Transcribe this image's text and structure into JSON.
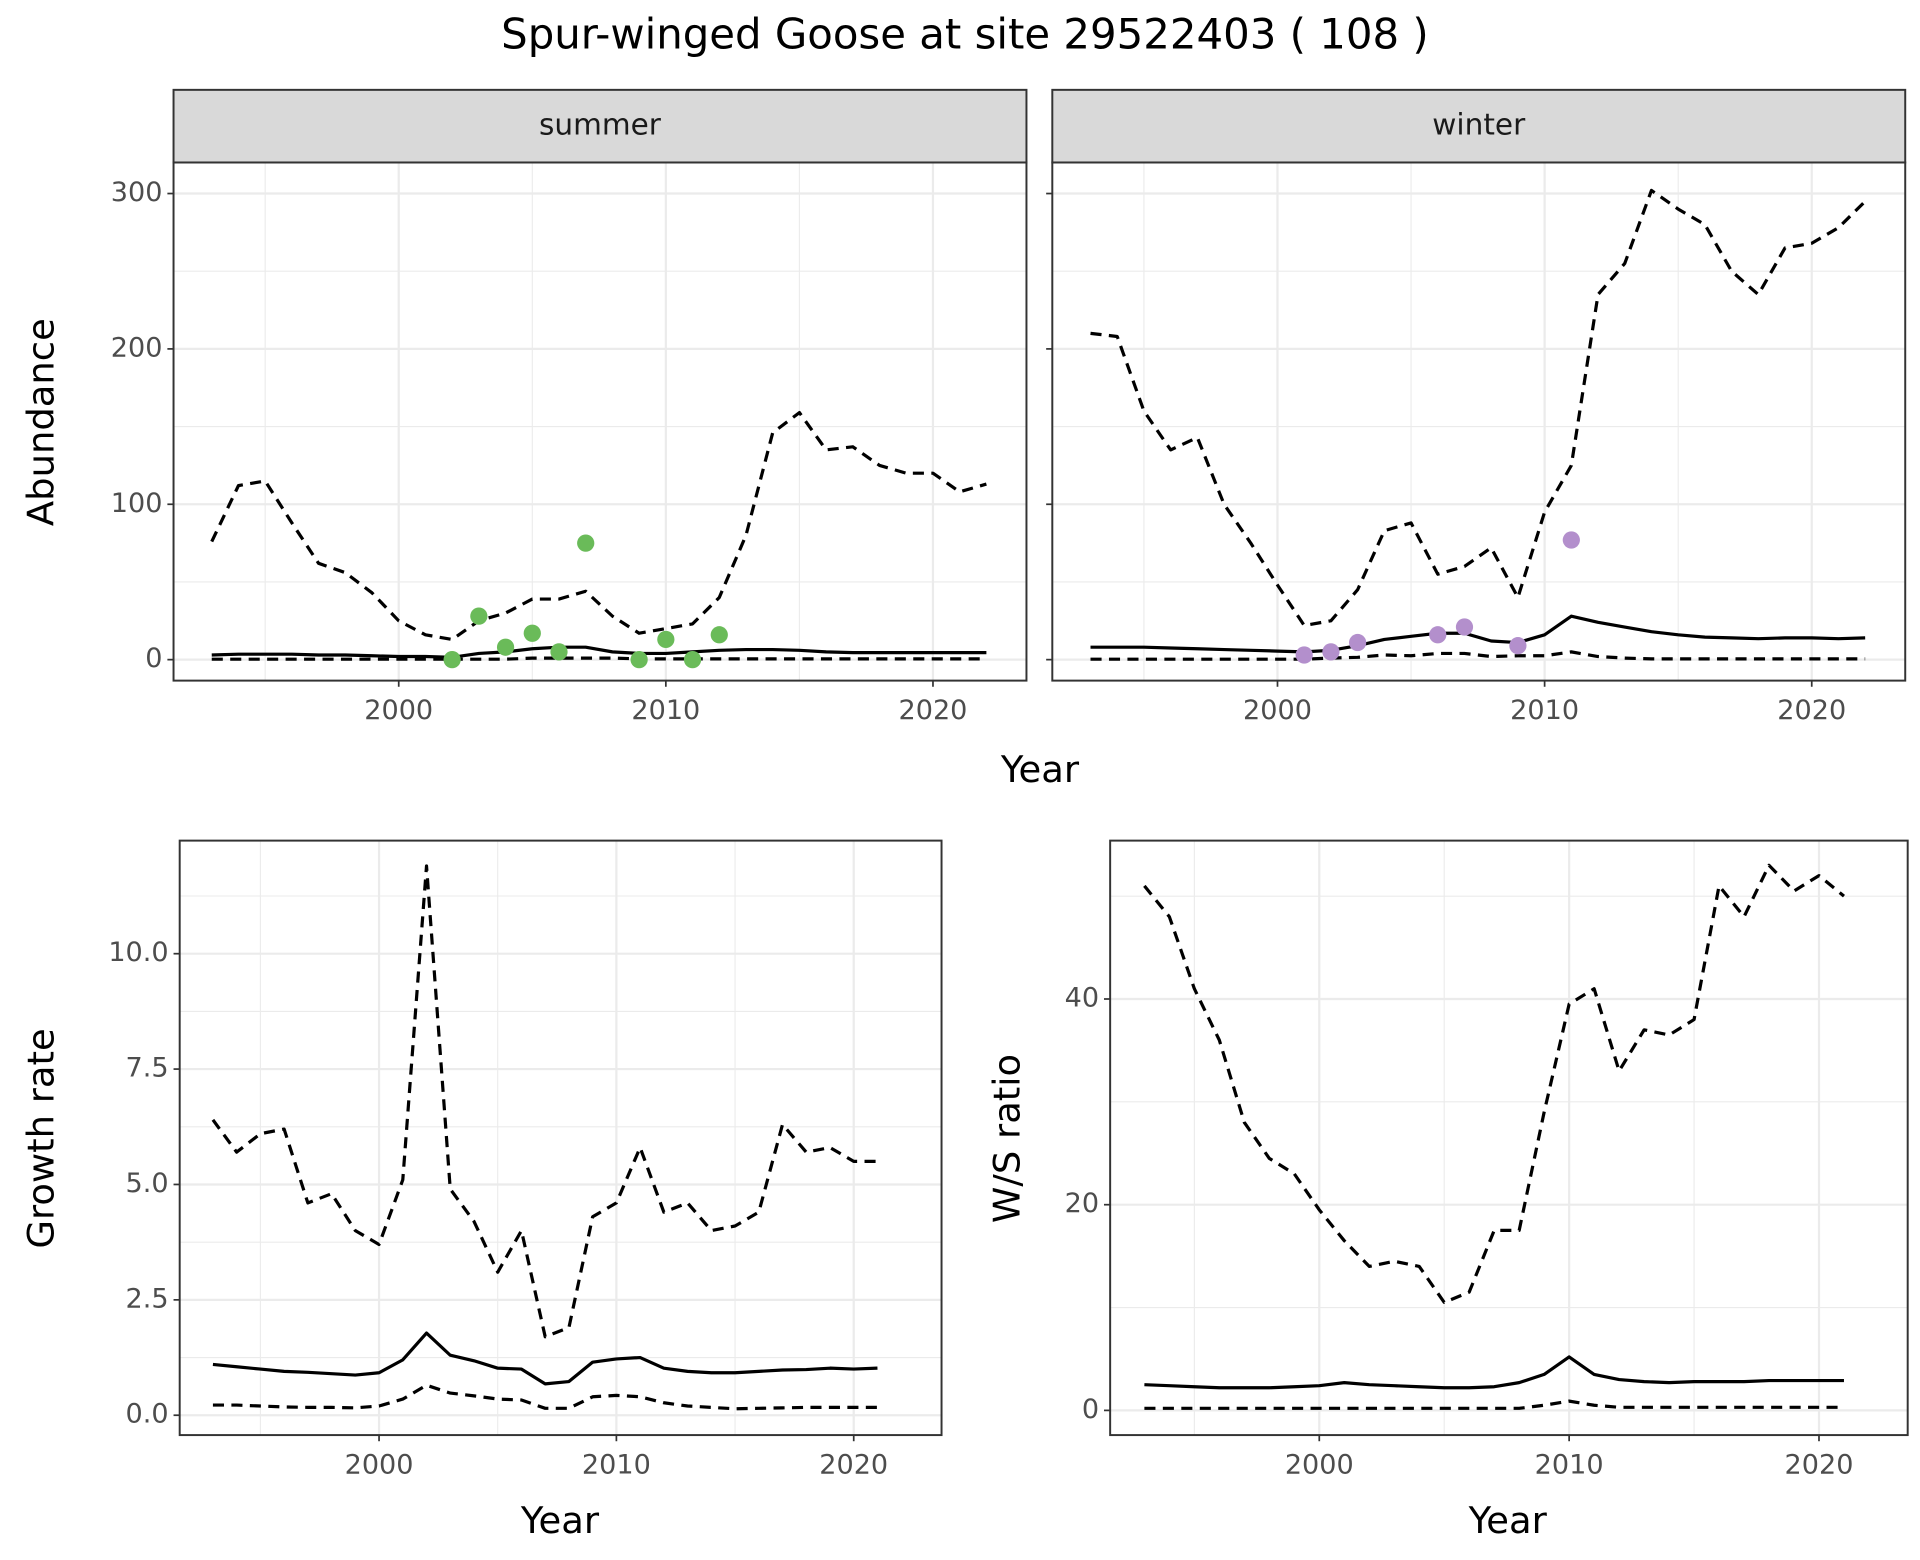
{
  "title": "Spur-winged Goose at site 29522403 ( 108 )",
  "chart_data": [
    {
      "type": "line",
      "title": "summer",
      "ylabel": "Abundance",
      "xlabel": "Year",
      "xlim": [
        1991.57,
        2023.5
      ],
      "ylim": [
        -13.5,
        320
      ],
      "xticks": [
        2000,
        2010,
        2020
      ],
      "yticks": [
        0,
        100,
        200,
        300
      ],
      "grid": true,
      "x": [
        1993,
        1994,
        1995,
        1996,
        1997,
        1998,
        1999,
        2000,
        2001,
        2002,
        2003,
        2004,
        2005,
        2006,
        2007,
        2008,
        2009,
        2010,
        2011,
        2012,
        2013,
        2014,
        2015,
        2016,
        2017,
        2018,
        2019,
        2020,
        2021,
        2022
      ],
      "series": [
        {
          "style": "solid",
          "color": "#000000",
          "values": [
            3,
            3.5,
            3.5,
            3.5,
            3,
            3,
            2.5,
            2,
            2,
            1.5,
            4,
            5,
            7,
            8,
            8,
            5,
            4,
            4,
            5,
            6,
            6.5,
            6.5,
            6,
            5,
            4.5,
            4.5,
            4.5,
            4.5,
            4.5,
            4.5
          ]
        },
        {
          "style": "dashed",
          "color": "#000000",
          "values": [
            0.3,
            0.3,
            0.3,
            0.3,
            0.3,
            0.3,
            0.3,
            0.3,
            0.3,
            0.3,
            0.3,
            0.3,
            1,
            1,
            1,
            1,
            0.5,
            0.5,
            0.5,
            0.5,
            0.5,
            0.5,
            0.5,
            0.5,
            0.5,
            0.5,
            0.5,
            0.5,
            0.5,
            0.5
          ]
        },
        {
          "style": "dashed",
          "color": "#000000",
          "values": [
            76,
            112,
            115,
            88,
            62,
            56,
            43,
            25,
            16,
            13,
            25,
            30,
            39,
            39,
            44,
            28,
            17,
            20,
            23,
            40,
            80,
            146,
            159,
            135,
            137,
            125,
            120,
            120,
            108,
            113
          ]
        }
      ],
      "points": {
        "color": "#6abb59",
        "x": [
          2002,
          2003,
          2004,
          2005,
          2006,
          2007,
          2009,
          2010,
          2011,
          2012
        ],
        "values": [
          0,
          28,
          8,
          17,
          5,
          75,
          0,
          13,
          0,
          16
        ]
      }
    },
    {
      "type": "line",
      "title": "winter",
      "xlim": [
        1991.57,
        2023.5
      ],
      "ylim": [
        -13.5,
        320
      ],
      "xticks": [
        2000,
        2010,
        2020
      ],
      "yticks": [
        0,
        100,
        200,
        300
      ],
      "grid": true,
      "x": [
        1993,
        1994,
        1995,
        1996,
        1997,
        1998,
        1999,
        2000,
        2001,
        2002,
        2003,
        2004,
        2005,
        2006,
        2007,
        2008,
        2009,
        2010,
        2011,
        2012,
        2013,
        2014,
        2015,
        2016,
        2017,
        2018,
        2019,
        2020,
        2021,
        2022
      ],
      "series": [
        {
          "style": "solid",
          "color": "#000000",
          "values": [
            8,
            8,
            8,
            7.5,
            7,
            6.5,
            6,
            5.5,
            5,
            6,
            9,
            13,
            15,
            17,
            17,
            12,
            11,
            16,
            28,
            24,
            21,
            18,
            16,
            14.5,
            14,
            13.5,
            14,
            14,
            13.5,
            14
          ]
        },
        {
          "style": "dashed",
          "color": "#000000",
          "values": [
            0.3,
            0.3,
            0.3,
            0.3,
            0.3,
            0.3,
            0.3,
            0.3,
            0.3,
            1,
            1.5,
            3,
            2.5,
            4,
            4,
            2,
            2.5,
            2.5,
            5,
            2,
            1,
            0.5,
            0.5,
            0.5,
            0.5,
            0.5,
            0.5,
            0.5,
            0.5,
            0.5
          ]
        },
        {
          "style": "dashed",
          "color": "#000000",
          "values": [
            210,
            208,
            160,
            135,
            143,
            100,
            75,
            48,
            22,
            25,
            45,
            83,
            88,
            55,
            60,
            72,
            40,
            95,
            125,
            235,
            255,
            302,
            290,
            280,
            250,
            235,
            265,
            268,
            278,
            295
          ]
        }
      ],
      "points": {
        "color": "#b38fcc",
        "x": [
          2001,
          2002,
          2003,
          2006,
          2007,
          2009,
          2011
        ],
        "values": [
          3,
          5,
          11,
          16,
          21,
          9,
          77
        ]
      }
    },
    {
      "type": "line",
      "ylabel": "Growth rate",
      "xlabel": "Year",
      "xlim": [
        1991.6,
        2023.7
      ],
      "ylim": [
        -0.43,
        12.45
      ],
      "xticks": [
        2000,
        2010,
        2020
      ],
      "yticks": [
        {
          "value": 0,
          "label": "0.0"
        },
        {
          "value": 2.5,
          "label": "2.5"
        },
        {
          "value": 5,
          "label": "5.0"
        },
        {
          "value": 7.5,
          "label": "7.5"
        },
        {
          "value": 10,
          "label": "10.0"
        }
      ],
      "grid": true,
      "x": [
        1993,
        1994,
        1995,
        1996,
        1997,
        1998,
        1999,
        2000,
        2001,
        2002,
        2003,
        2004,
        2005,
        2006,
        2007,
        2008,
        2009,
        2010,
        2011,
        2012,
        2013,
        2014,
        2015,
        2016,
        2017,
        2018,
        2019,
        2020,
        2021
      ],
      "series": [
        {
          "style": "solid",
          "color": "#000000",
          "values": [
            1.1,
            1.05,
            1.0,
            0.95,
            0.93,
            0.9,
            0.87,
            0.92,
            1.2,
            1.78,
            1.3,
            1.18,
            1.02,
            1.0,
            0.68,
            0.73,
            1.15,
            1.22,
            1.25,
            1.02,
            0.95,
            0.92,
            0.92,
            0.95,
            0.98,
            0.99,
            1.02,
            1.0,
            1.02
          ]
        },
        {
          "style": "dashed",
          "color": "#000000",
          "values": [
            0.22,
            0.22,
            0.2,
            0.18,
            0.17,
            0.17,
            0.16,
            0.2,
            0.35,
            0.65,
            0.48,
            0.42,
            0.35,
            0.33,
            0.15,
            0.15,
            0.4,
            0.43,
            0.4,
            0.27,
            0.2,
            0.17,
            0.14,
            0.15,
            0.16,
            0.17,
            0.17,
            0.17,
            0.17
          ]
        },
        {
          "style": "dashed",
          "color": "#000000",
          "values": [
            6.4,
            5.7,
            6.1,
            6.2,
            4.6,
            4.8,
            4.0,
            3.7,
            5.1,
            11.9,
            4.9,
            4.2,
            3.1,
            4.0,
            1.7,
            1.9,
            4.3,
            4.6,
            5.8,
            4.4,
            4.6,
            4.0,
            4.1,
            4.4,
            6.3,
            5.7,
            5.8,
            5.5,
            5.5
          ]
        }
      ]
    },
    {
      "type": "line",
      "ylabel": "W/S ratio",
      "xlabel": "Year",
      "xlim": [
        1991.63,
        2023.55
      ],
      "ylim": [
        -2.4,
        55.4
      ],
      "xticks": [
        2000,
        2010,
        2020
      ],
      "yticks": [
        0,
        20,
        40
      ],
      "grid": true,
      "x": [
        1993,
        1994,
        1995,
        1996,
        1997,
        1998,
        1999,
        2000,
        2001,
        2002,
        2003,
        2004,
        2005,
        2006,
        2007,
        2008,
        2009,
        2010,
        2011,
        2012,
        2013,
        2014,
        2015,
        2016,
        2017,
        2018,
        2019,
        2020,
        2021
      ],
      "series": [
        {
          "style": "solid",
          "color": "#000000",
          "values": [
            2.5,
            2.4,
            2.3,
            2.2,
            2.2,
            2.2,
            2.3,
            2.4,
            2.7,
            2.5,
            2.4,
            2.3,
            2.2,
            2.2,
            2.3,
            2.7,
            3.5,
            5.2,
            3.5,
            3.0,
            2.8,
            2.7,
            2.8,
            2.8,
            2.8,
            2.9,
            2.9,
            2.9,
            2.9
          ]
        },
        {
          "style": "dashed",
          "color": "#000000",
          "values": [
            0.2,
            0.2,
            0.2,
            0.2,
            0.2,
            0.2,
            0.2,
            0.2,
            0.2,
            0.2,
            0.2,
            0.2,
            0.2,
            0.2,
            0.2,
            0.2,
            0.5,
            0.9,
            0.5,
            0.3,
            0.3,
            0.3,
            0.3,
            0.3,
            0.3,
            0.3,
            0.3,
            0.3,
            0.3
          ]
        },
        {
          "style": "dashed",
          "color": "#000000",
          "values": [
            51,
            48,
            41,
            36,
            28,
            24.5,
            23,
            19.5,
            16.5,
            14,
            14.5,
            14,
            10.5,
            11.5,
            17.5,
            17.5,
            29,
            39.5,
            41,
            33,
            37,
            36.5,
            38,
            51,
            48,
            53,
            50.5,
            52,
            50
          ]
        }
      ]
    }
  ]
}
